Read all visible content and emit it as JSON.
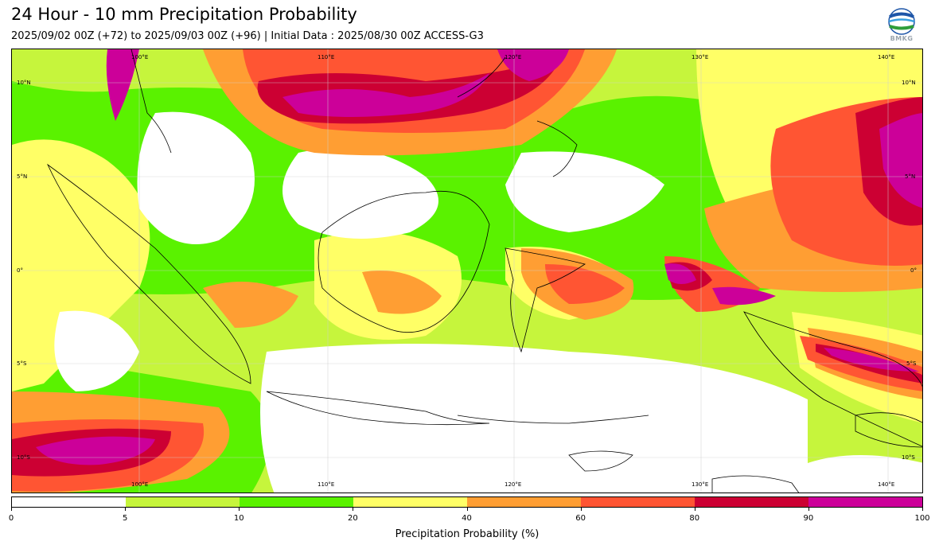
{
  "header": {
    "title": "24 Hour - 10 mm Precipitation Probability",
    "subtitle": "2025/09/02 00Z (+72) to 2025/09/03 00Z (+96) | Initial Data : 2025/08/30 00Z ACCESS-G3"
  },
  "logo": {
    "text": "BMKG",
    "icon": "bmkg-logo-globe"
  },
  "map": {
    "lon_labels_top": [
      "100°E",
      "110°E",
      "120°E",
      "130°E",
      "140°E"
    ],
    "lon_labels_bottom": [
      "100°E",
      "110°E",
      "120°E",
      "130°E",
      "140°E"
    ],
    "lat_labels_left": [
      "10°N",
      "5°N",
      "0°",
      "5°S",
      "10°S"
    ],
    "lat_labels_right": [
      "10°N",
      "5°N",
      "0°",
      "5°S",
      "10°S"
    ]
  },
  "colorbar": {
    "ticks": [
      "0",
      "5",
      "10",
      "20",
      "40",
      "60",
      "80",
      "90",
      "100"
    ],
    "colors": [
      "#ffffff",
      "#c6f53c",
      "#5af200",
      "#ffff66",
      "#ff9e33",
      "#ff5533",
      "#cc0033",
      "#cc0099"
    ],
    "label": "Precipitation Probability (%)"
  }
}
